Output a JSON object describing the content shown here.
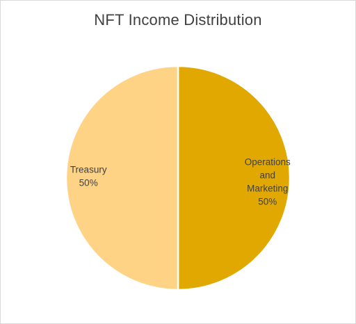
{
  "chart_data": {
    "type": "pie",
    "title": "NFT Income Distribution",
    "slices": [
      {
        "name": "Operations and Marketing",
        "label_lines": [
          "Operations",
          "and",
          "Marketing"
        ],
        "value": 50,
        "value_label": "50%",
        "color": "#e0a800"
      },
      {
        "name": "Treasury",
        "label_lines": [
          "Treasury"
        ],
        "value": 50,
        "value_label": "50%",
        "color": "#ffd386"
      }
    ]
  }
}
